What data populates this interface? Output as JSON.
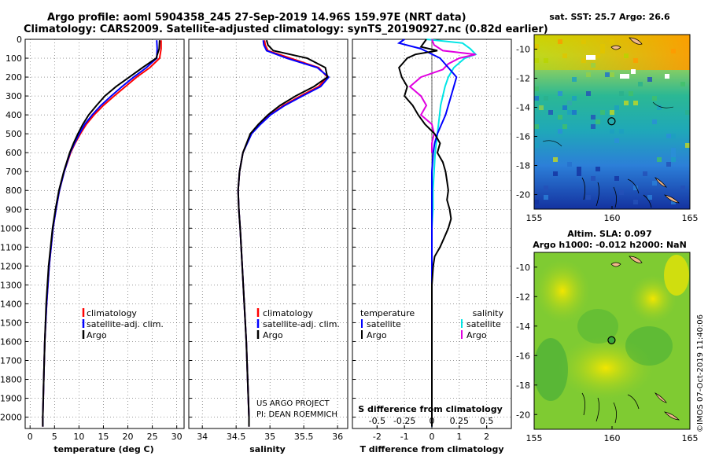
{
  "title_line1": "Argo profile: aoml 5904358_245 27-Sep-2019 14.96S 159.97E (NRT data)",
  "title_line2": "Climatology: CARS2009. Satellite-adjusted climatology: synTS_20190927.nc (0.82d earlier)",
  "credit_line1": "US ARGO PROJECT",
  "credit_line2": "PI: DEAN ROEMMICH",
  "imos_stamp": "©IMOS 07-Oct-2019 11:40:06",
  "colors": {
    "climatology": "#ff0000",
    "satellite": "#0000ff",
    "argo": "#000000",
    "sal_satellite": "#00e5e5",
    "sal_argo": "#e000e0"
  },
  "chart_data": [
    {
      "type": "line",
      "title": "",
      "xlabel": "temperature (deg C)",
      "ylabel": "",
      "xlim": [
        -1,
        31.5
      ],
      "ylim": [
        2060,
        0
      ],
      "xticks": [
        0,
        5,
        10,
        15,
        20,
        25,
        30
      ],
      "xtick_labels": [
        "0",
        "5",
        "10",
        "15",
        "20",
        "25",
        "30"
      ],
      "yticks": [
        0,
        100,
        200,
        300,
        400,
        500,
        600,
        700,
        800,
        900,
        1000,
        1100,
        1200,
        1300,
        1400,
        1500,
        1600,
        1700,
        1800,
        1900,
        2000
      ],
      "legend": [
        "climatology",
        "satellite-adj. clim.",
        "Argo"
      ],
      "series": [
        {
          "name": "climatology",
          "depth": [
            5,
            50,
            100,
            150,
            200,
            250,
            300,
            350,
            400,
            450,
            500,
            550,
            600,
            700,
            800,
            900,
            1000,
            1200,
            1400,
            1600,
            1800,
            2000,
            2050
          ],
          "values": [
            26.8,
            26.8,
            26.5,
            24.5,
            21.8,
            19.5,
            17.2,
            15.0,
            13.1,
            11.5,
            10.3,
            9.2,
            8.3,
            7.0,
            6.0,
            5.3,
            4.7,
            3.9,
            3.4,
            3.0,
            2.8,
            2.6,
            2.6
          ]
        },
        {
          "name": "satellite-adj. clim.",
          "depth": [
            5,
            50,
            100,
            150,
            200,
            250,
            300,
            350,
            400,
            450,
            500,
            550,
            600,
            700,
            800,
            900,
            1000,
            1200,
            1400,
            1600,
            1800,
            2000,
            2050
          ],
          "values": [
            25.9,
            26.0,
            25.9,
            23.8,
            21.2,
            18.8,
            16.6,
            14.5,
            12.7,
            11.2,
            10.1,
            9.1,
            8.2,
            7.0,
            6.0,
            5.3,
            4.7,
            3.9,
            3.4,
            3.0,
            2.8,
            2.6,
            2.6
          ]
        },
        {
          "name": "Argo",
          "depth": [
            5,
            50,
            100,
            150,
            200,
            250,
            300,
            350,
            400,
            450,
            500,
            550,
            600,
            700,
            800,
            900,
            1000,
            1200,
            1400,
            1600,
            1800,
            2000,
            2050
          ],
          "values": [
            26.5,
            26.4,
            25.8,
            23.0,
            20.3,
            17.6,
            15.3,
            13.6,
            12.0,
            10.8,
            9.8,
            8.9,
            8.1,
            6.9,
            5.9,
            5.2,
            4.6,
            3.8,
            3.3,
            3.0,
            2.8,
            2.6,
            2.6
          ]
        }
      ]
    },
    {
      "type": "line",
      "title": "",
      "xlabel": "salinity",
      "ylabel": "",
      "xlim": [
        33.8,
        36.15
      ],
      "ylim": [
        2060,
        0
      ],
      "xticks": [
        34,
        34.5,
        35,
        35.5,
        36
      ],
      "xtick_labels": [
        "34",
        "34.5",
        "35",
        "35.5",
        "36"
      ],
      "legend": [
        "climatology",
        "satellite-adj. clim.",
        "Argo"
      ],
      "series": [
        {
          "name": "climatology",
          "depth": [
            5,
            30,
            60,
            100,
            150,
            200,
            250,
            300,
            350,
            400,
            450,
            500,
            600,
            700,
            800,
            900,
            1000,
            1200,
            1400,
            1600,
            1800,
            2000,
            2050
          ],
          "values": [
            34.92,
            34.93,
            34.97,
            35.3,
            35.72,
            35.85,
            35.72,
            35.45,
            35.2,
            35.0,
            34.85,
            34.72,
            34.6,
            34.55,
            34.53,
            34.54,
            34.56,
            34.59,
            34.62,
            34.65,
            34.67,
            34.69,
            34.69
          ]
        },
        {
          "name": "satellite-adj. clim.",
          "depth": [
            5,
            30,
            60,
            100,
            150,
            200,
            250,
            300,
            350,
            400,
            450,
            500,
            600,
            700,
            800,
            900,
            1000,
            1200,
            1400,
            1600,
            1800,
            2000,
            2050
          ],
          "values": [
            34.9,
            34.91,
            34.95,
            35.25,
            35.7,
            35.87,
            35.75,
            35.48,
            35.22,
            35.01,
            34.86,
            34.73,
            34.6,
            34.55,
            34.53,
            34.54,
            34.56,
            34.59,
            34.62,
            34.65,
            34.67,
            34.69,
            34.69
          ]
        },
        {
          "name": "Argo",
          "depth": [
            5,
            30,
            60,
            100,
            150,
            200,
            250,
            300,
            350,
            400,
            450,
            500,
            600,
            700,
            800,
            900,
            1000,
            1200,
            1400,
            1600,
            1800,
            2000,
            2050
          ],
          "values": [
            34.95,
            34.97,
            35.05,
            35.55,
            35.82,
            35.85,
            35.65,
            35.38,
            35.15,
            34.97,
            34.83,
            34.71,
            34.6,
            34.55,
            34.53,
            34.54,
            34.56,
            34.59,
            34.62,
            34.65,
            34.67,
            34.69,
            34.69
          ]
        }
      ]
    },
    {
      "type": "line",
      "title": "",
      "xlabel": "T difference from climatology",
      "ylabel": "",
      "x2label": "S difference from climatology",
      "xlim": [
        -2.9,
        2.9
      ],
      "ylim": [
        2060,
        0
      ],
      "xticks": [
        -2,
        -1,
        0,
        1,
        2
      ],
      "xtick_labels": [
        "-2",
        "-1",
        "0",
        "1",
        "2"
      ],
      "x2ticks": [
        -0.5,
        -0.25,
        0,
        0.25,
        0.5
      ],
      "x2tick_labels": [
        "-0.5",
        "-0.25",
        "0",
        "0.25",
        "0.5"
      ],
      "legend_temperature": [
        "temperature",
        "satellite",
        "Argo"
      ],
      "legend_salinity": [
        "salinity",
        "satellite",
        "Argo"
      ],
      "series": [
        {
          "name": "T satellite",
          "depth": [
            0,
            20,
            50,
            100,
            150,
            200,
            250,
            300,
            350,
            400,
            450,
            500,
            550,
            600,
            700,
            800,
            900,
            1000,
            1200,
            1400,
            1600,
            1800,
            2000,
            2050
          ],
          "values": [
            -1.0,
            -1.2,
            -0.4,
            0.3,
            0.6,
            0.9,
            0.8,
            0.7,
            0.6,
            0.5,
            0.35,
            0.2,
            0.1,
            0.05,
            0,
            0,
            0,
            0,
            0,
            0,
            0,
            0,
            0,
            0
          ]
        },
        {
          "name": "T Argo",
          "depth": [
            0,
            40,
            60,
            80,
            100,
            150,
            200,
            250,
            300,
            350,
            400,
            450,
            500,
            550,
            600,
            650,
            700,
            750,
            800,
            850,
            900,
            950,
            1000,
            1050,
            1100,
            1150,
            1200,
            1300,
            1500,
            2000,
            2050
          ],
          "values": [
            -0.2,
            -0.4,
            0.2,
            -0.6,
            -0.9,
            -1.2,
            -1.1,
            -0.9,
            -1.0,
            -0.7,
            -0.5,
            -0.25,
            0.1,
            0.3,
            0.2,
            0.4,
            0.5,
            0.55,
            0.6,
            0.55,
            0.65,
            0.7,
            0.6,
            0.45,
            0.3,
            0.1,
            0.05,
            0,
            0,
            0,
            0
          ]
        },
        {
          "name": "S satellite",
          "depth": [
            0,
            20,
            50,
            80,
            100,
            150,
            200,
            250,
            300,
            350,
            400,
            450,
            500,
            600,
            700,
            800,
            900,
            1000,
            1200,
            1400,
            1600,
            1800,
            2000,
            2050
          ],
          "values": [
            -0.05,
            0.28,
            0.35,
            0.4,
            0.3,
            0.2,
            0.15,
            0.12,
            0.1,
            0.08,
            0.07,
            0.06,
            0.05,
            0.03,
            0.02,
            0.01,
            0.01,
            0,
            0,
            0,
            0,
            0,
            0,
            0
          ]
        },
        {
          "name": "S Argo",
          "depth": [
            0,
            30,
            60,
            80,
            100,
            130,
            160,
            200,
            250,
            300,
            350,
            400,
            450,
            500,
            550,
            600
          ],
          "values": [
            0,
            0.02,
            0.1,
            0.4,
            0.25,
            0.15,
            0.1,
            -0.1,
            -0.2,
            -0.1,
            -0.05,
            -0.1,
            0,
            0.02,
            0,
            0
          ]
        }
      ]
    },
    {
      "type": "heatmap",
      "title": "sat. SST: 25.7 Argo: 26.6",
      "xlim": [
        155,
        165
      ],
      "ylim": [
        -21,
        -9
      ],
      "xticks": [
        155,
        160,
        165
      ],
      "xtick_labels": [
        "155",
        "160",
        "165"
      ],
      "yticks": [
        -10,
        -12,
        -14,
        -16,
        -18,
        -20
      ],
      "ytick_labels": [
        "-10",
        "-12",
        "-14",
        "-16",
        "-18",
        "-20"
      ],
      "marker": {
        "lon": 159.97,
        "lat": -14.96
      }
    },
    {
      "type": "heatmap",
      "title": "Altim. SLA: 0.097",
      "title2": "Argo h1000: -0.012 h2000: NaN",
      "xlim": [
        155,
        165
      ],
      "ylim": [
        -21,
        -9
      ],
      "xticks": [
        155,
        160,
        165
      ],
      "xtick_labels": [
        "155",
        "160",
        "165"
      ],
      "yticks": [
        -10,
        -12,
        -14,
        -16,
        -18,
        -20
      ],
      "ytick_labels": [
        "-10",
        "-12",
        "-14",
        "-16",
        "-18",
        "-20"
      ],
      "marker": {
        "lon": 159.97,
        "lat": -14.96
      }
    }
  ]
}
